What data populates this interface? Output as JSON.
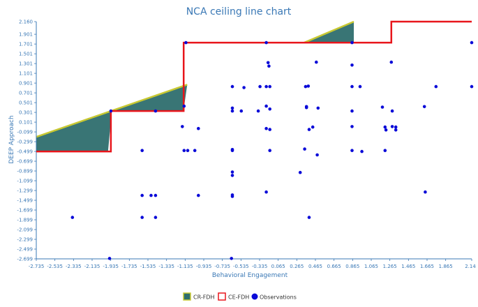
{
  "chart_data": {
    "type": "scatter",
    "title": "NCA ceiling line chart",
    "xlabel": "Behavioral Engagement",
    "ylabel": "DEEP Approach",
    "xlim": [
      -2.735,
      2.14
    ],
    "ylim": [
      -2.699,
      2.16
    ],
    "x_ticks": [
      "-2.735",
      "-2.535",
      "-2.335",
      "-2.135",
      "-1.935",
      "-1.735",
      "-1.535",
      "-1.335",
      "-1.135",
      "-0.935",
      "-0.735",
      "-0.535",
      "-0.335",
      "0.065",
      "0.265",
      "0.465",
      "0.665",
      "0.865",
      "1.065",
      "1.265",
      "1.465",
      "1.665",
      "1.865",
      "2.14"
    ],
    "y_ticks": [
      "2.160",
      "1.901",
      "1.701",
      "1.501",
      "1.301",
      "1.101",
      "0.901",
      "0.701",
      "0.501",
      "0.301",
      "0.101",
      "-0.099",
      "-0.299",
      "-0.499",
      "-0.699",
      "-0.899",
      "-1.099",
      "-1.299",
      "-1.499",
      "-1.699",
      "-1.899",
      "-2.099",
      "-2.299",
      "-2.499",
      "-2.699"
    ],
    "legend": [
      "CR-FDH",
      "CE-FDH",
      "Observations"
    ],
    "legend_position": "bottom",
    "grid": false,
    "colors": {
      "ce_line": "#e8151b",
      "cr_line": "#c8c832",
      "cr_fill": "#2e6e6e",
      "points": "#0a0ad8",
      "axis": "#3a78b5"
    },
    "ce_fdh": [
      [
        -2.735,
        -0.499
      ],
      [
        -1.9,
        -0.499
      ],
      [
        -1.9,
        0.33
      ],
      [
        -1.085,
        0.33
      ],
      [
        -1.085,
        1.73
      ],
      [
        0.82,
        1.73
      ],
      [
        0.82,
        1.73
      ],
      [
        1.24,
        1.73
      ],
      [
        1.24,
        2.16
      ],
      [
        2.14,
        2.16
      ]
    ],
    "cr_fdh": [
      [
        -2.735,
        -0.2
      ],
      [
        -1.045,
        0.87
      ]
    ],
    "cr_fdh_upper": [
      [
        0.265,
        1.73
      ],
      [
        0.82,
        2.16
      ]
    ],
    "points": [
      [
        -2.33,
        -1.85
      ],
      [
        -1.915,
        -2.69
      ],
      [
        -1.9,
        0.33
      ],
      [
        -1.55,
        -0.48
      ],
      [
        -1.55,
        -1.4
      ],
      [
        -1.55,
        -1.85
      ],
      [
        -1.45,
        -1.4
      ],
      [
        -1.4,
        -1.4
      ],
      [
        -1.4,
        0.33
      ],
      [
        -1.4,
        -1.85
      ],
      [
        -1.1,
        0.01
      ],
      [
        -1.08,
        0.43
      ],
      [
        -1.06,
        1.73
      ],
      [
        -1.08,
        -0.48
      ],
      [
        -1.04,
        -0.48
      ],
      [
        -0.96,
        -0.48
      ],
      [
        -0.92,
        -0.03
      ],
      [
        -0.92,
        -1.4
      ],
      [
        -0.55,
        -2.69
      ],
      [
        -0.54,
        -0.46
      ],
      [
        -0.54,
        -0.48
      ],
      [
        -0.54,
        -0.92
      ],
      [
        -0.54,
        -0.99
      ],
      [
        -0.54,
        -1.39
      ],
      [
        -0.54,
        -1.42
      ],
      [
        -0.54,
        0.33
      ],
      [
        -0.54,
        0.39
      ],
      [
        -0.54,
        0.83
      ],
      [
        -0.44,
        0.33
      ],
      [
        -0.41,
        0.81
      ],
      [
        -0.25,
        0.33
      ],
      [
        -0.23,
        0.83
      ],
      [
        -0.16,
        1.73
      ],
      [
        -0.16,
        0.83
      ],
      [
        -0.16,
        0.43
      ],
      [
        -0.16,
        -0.03
      ],
      [
        -0.16,
        -1.33
      ],
      [
        -0.14,
        1.32
      ],
      [
        -0.13,
        1.25
      ],
      [
        -0.12,
        0.83
      ],
      [
        -0.12,
        0.37
      ],
      [
        -0.12,
        -0.05
      ],
      [
        -0.12,
        -0.48
      ],
      [
        0.22,
        -0.93
      ],
      [
        0.27,
        -0.45
      ],
      [
        0.28,
        0.83
      ],
      [
        0.29,
        0.4
      ],
      [
        0.29,
        0.42
      ],
      [
        0.31,
        0.84
      ],
      [
        0.32,
        -1.85
      ],
      [
        0.32,
        -0.05
      ],
      [
        0.36,
        0.0
      ],
      [
        0.4,
        1.33
      ],
      [
        0.41,
        -0.57
      ],
      [
        0.42,
        0.39
      ],
      [
        0.8,
        1.73
      ],
      [
        0.8,
        1.27
      ],
      [
        0.8,
        0.83
      ],
      [
        0.8,
        0.33
      ],
      [
        0.8,
        0.01
      ],
      [
        0.8,
        -0.48
      ],
      [
        0.89,
        0.83
      ],
      [
        0.91,
        -0.5
      ],
      [
        1.14,
        0.41
      ],
      [
        1.17,
        0.0
      ],
      [
        1.18,
        -0.06
      ],
      [
        1.17,
        -0.48
      ],
      [
        1.24,
        1.33
      ],
      [
        1.25,
        0.33
      ],
      [
        1.25,
        0.01
      ],
      [
        1.29,
        0.0
      ],
      [
        1.29,
        -0.06
      ],
      [
        1.61,
        0.42
      ],
      [
        1.62,
        -1.33
      ],
      [
        1.74,
        0.83
      ],
      [
        2.14,
        1.73
      ],
      [
        2.14,
        0.83
      ]
    ]
  }
}
